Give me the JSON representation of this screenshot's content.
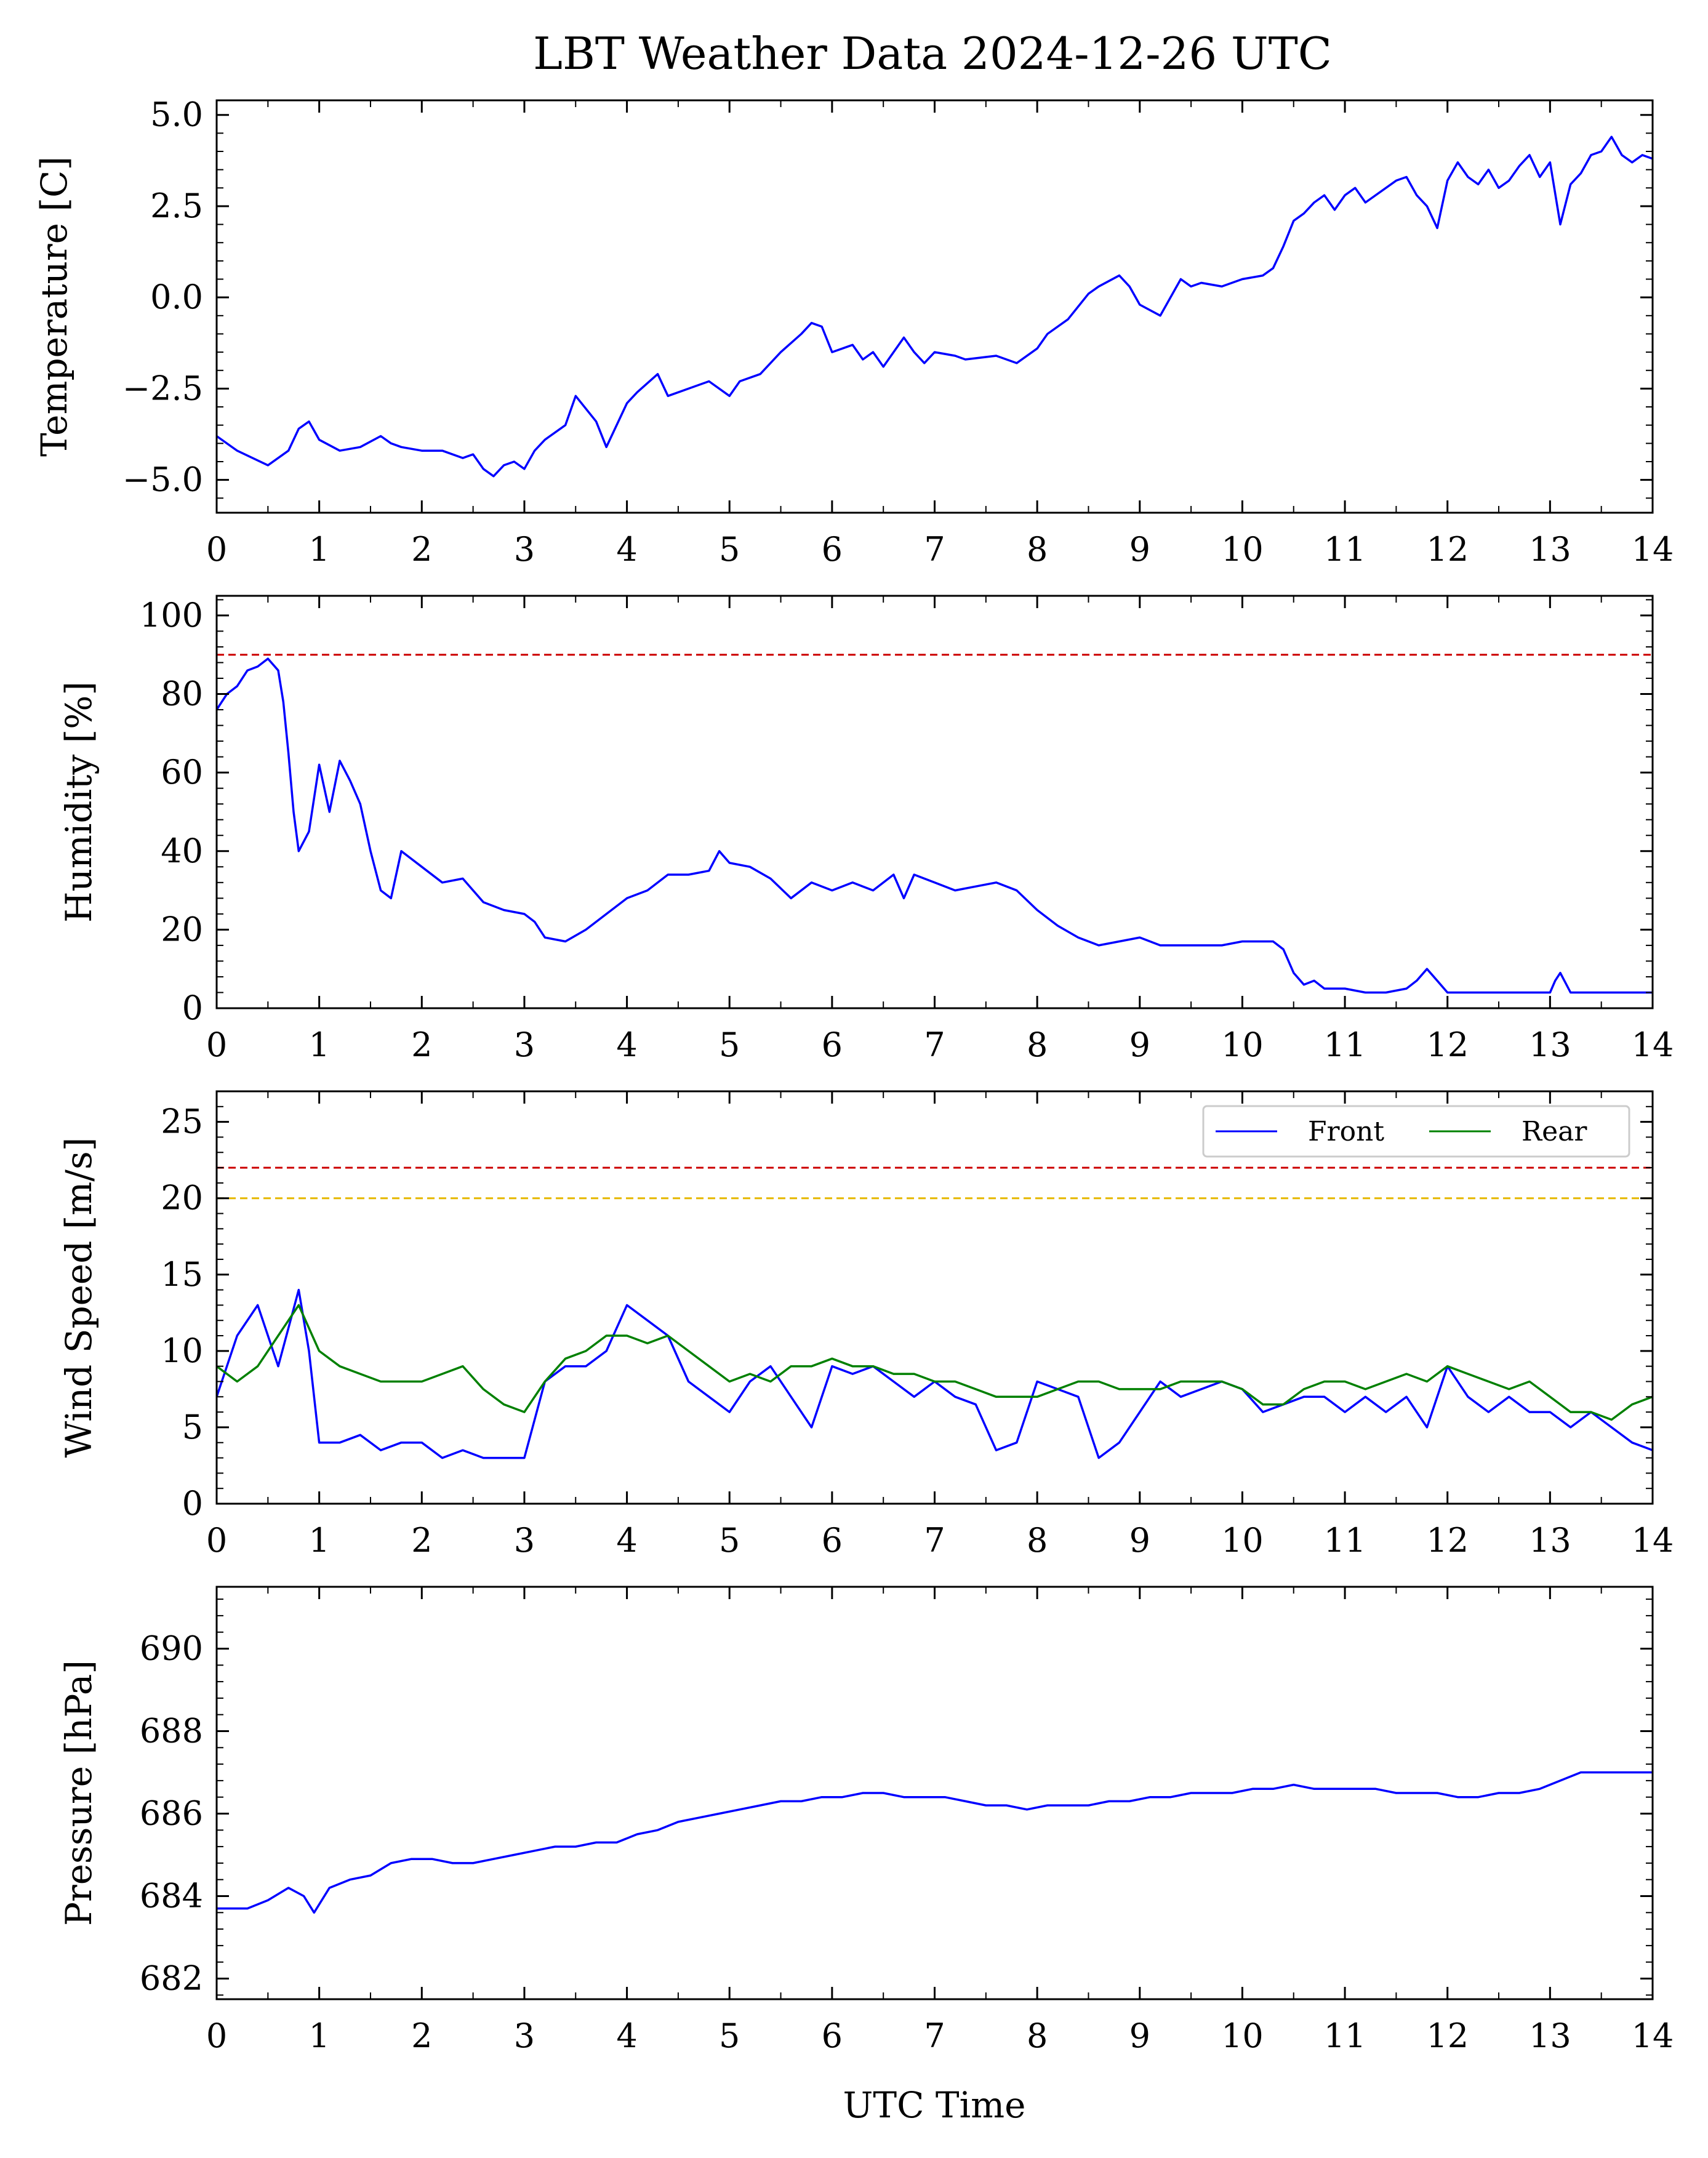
{
  "chart_data": {
    "title": "LBT Weather Data 2024-12-26 UTC",
    "xlabel": "UTC Time",
    "xlim": [
      0,
      14
    ],
    "xticks": [
      0,
      1,
      2,
      3,
      4,
      5,
      6,
      7,
      8,
      9,
      10,
      11,
      12,
      13,
      14
    ],
    "panels": [
      {
        "id": "temperature",
        "type": "line",
        "ylabel": "Temperature [C]",
        "ylim": [
          -5.9,
          5.4
        ],
        "yticks": [
          -5.0,
          -2.5,
          0.0,
          2.5,
          5.0
        ],
        "ytick_labels": [
          "−5.0",
          "−2.5",
          "0.0",
          "2.5",
          "5.0"
        ],
        "series": [
          {
            "color": "#0000ff",
            "x": [
              0,
              0.2,
              0.5,
              0.7,
              0.8,
              0.9,
              1.0,
              1.2,
              1.4,
              1.6,
              1.7,
              1.8,
              2.0,
              2.2,
              2.4,
              2.5,
              2.6,
              2.7,
              2.8,
              2.9,
              3.0,
              3.1,
              3.2,
              3.4,
              3.5,
              3.7,
              3.8,
              4.0,
              4.1,
              4.3,
              4.4,
              4.6,
              4.8,
              5.0,
              5.1,
              5.3,
              5.5,
              5.7,
              5.8,
              5.9,
              6.0,
              6.2,
              6.3,
              6.4,
              6.5,
              6.7,
              6.8,
              6.9,
              7.0,
              7.2,
              7.3,
              7.6,
              7.8,
              8.0,
              8.1,
              8.3,
              8.5,
              8.6,
              8.8,
              8.9,
              9.0,
              9.2,
              9.4,
              9.5,
              9.6,
              9.8,
              10.0,
              10.2,
              10.3,
              10.4,
              10.5,
              10.6,
              10.7,
              10.8,
              10.9,
              11.0,
              11.1,
              11.2,
              11.4,
              11.5,
              11.6,
              11.7,
              11.8,
              11.9,
              12.0,
              12.1,
              12.2,
              12.3,
              12.4,
              12.5,
              12.6,
              12.7,
              12.8,
              12.9,
              13.0,
              13.1,
              13.2,
              13.3,
              13.4,
              13.5,
              13.6,
              13.7,
              13.8,
              13.9,
              14.0
            ],
            "y": [
              -3.8,
              -4.2,
              -4.6,
              -4.2,
              -3.6,
              -3.4,
              -3.9,
              -4.2,
              -4.1,
              -3.8,
              -4.0,
              -4.1,
              -4.2,
              -4.2,
              -4.4,
              -4.3,
              -4.7,
              -4.9,
              -4.6,
              -4.5,
              -4.7,
              -4.2,
              -3.9,
              -3.5,
              -2.7,
              -3.4,
              -4.1,
              -2.9,
              -2.6,
              -2.1,
              -2.7,
              -2.5,
              -2.3,
              -2.7,
              -2.3,
              -2.1,
              -1.5,
              -1.0,
              -0.7,
              -0.8,
              -1.5,
              -1.3,
              -1.7,
              -1.5,
              -1.9,
              -1.1,
              -1.5,
              -1.8,
              -1.5,
              -1.6,
              -1.7,
              -1.6,
              -1.8,
              -1.4,
              -1.0,
              -0.6,
              0.1,
              0.3,
              0.6,
              0.3,
              -0.2,
              -0.5,
              0.5,
              0.3,
              0.4,
              0.3,
              0.5,
              0.6,
              0.8,
              1.4,
              2.1,
              2.3,
              2.6,
              2.8,
              2.4,
              2.8,
              3.0,
              2.6,
              3.0,
              3.2,
              3.3,
              2.8,
              2.5,
              1.9,
              3.2,
              3.7,
              3.3,
              3.1,
              3.5,
              3.0,
              3.2,
              3.6,
              3.9,
              3.3,
              3.7,
              2.0,
              3.1,
              3.4,
              3.9,
              4.0,
              4.4,
              3.9,
              3.7,
              3.9,
              3.8
            ]
          }
        ],
        "hlines": []
      },
      {
        "id": "humidity",
        "type": "line",
        "ylabel": "Humidity [%]",
        "ylim": [
          0,
          105
        ],
        "yticks": [
          0,
          20,
          40,
          60,
          80,
          100
        ],
        "ytick_labels": [
          "0",
          "20",
          "40",
          "60",
          "80",
          "100"
        ],
        "series": [
          {
            "color": "#0000ff",
            "x": [
              0,
              0.1,
              0.2,
              0.3,
              0.4,
              0.5,
              0.6,
              0.65,
              0.7,
              0.75,
              0.8,
              0.9,
              1.0,
              1.1,
              1.2,
              1.3,
              1.4,
              1.5,
              1.6,
              1.7,
              1.8,
              1.9,
              2.0,
              2.2,
              2.4,
              2.6,
              2.8,
              3.0,
              3.1,
              3.2,
              3.4,
              3.6,
              3.8,
              4.0,
              4.2,
              4.4,
              4.6,
              4.8,
              4.9,
              5.0,
              5.2,
              5.4,
              5.6,
              5.8,
              6.0,
              6.2,
              6.4,
              6.6,
              6.7,
              6.8,
              7.0,
              7.2,
              7.4,
              7.6,
              7.8,
              8.0,
              8.2,
              8.4,
              8.6,
              8.8,
              9.0,
              9.2,
              9.4,
              9.6,
              9.8,
              10.0,
              10.2,
              10.3,
              10.4,
              10.5,
              10.6,
              10.7,
              10.8,
              11.0,
              11.2,
              11.4,
              11.6,
              11.7,
              11.8,
              11.9,
              12.0,
              12.2,
              12.4,
              12.6,
              12.8,
              13.0,
              13.05,
              13.1,
              13.2,
              13.4,
              13.6,
              13.8,
              14.0
            ],
            "y": [
              76,
              80,
              82,
              86,
              87,
              89,
              86,
              78,
              65,
              50,
              40,
              45,
              62,
              50,
              63,
              58,
              52,
              40,
              30,
              28,
              40,
              38,
              36,
              32,
              33,
              27,
              25,
              24,
              22,
              18,
              17,
              20,
              24,
              28,
              30,
              34,
              34,
              35,
              40,
              37,
              36,
              33,
              28,
              32,
              30,
              32,
              30,
              34,
              28,
              34,
              32,
              30,
              31,
              32,
              30,
              25,
              21,
              18,
              16,
              17,
              18,
              16,
              16,
              16,
              16,
              17,
              17,
              17,
              15,
              9,
              6,
              7,
              5,
              5,
              4,
              4,
              5,
              7,
              10,
              7,
              4,
              4,
              4,
              4,
              4,
              4,
              7,
              9,
              4,
              4,
              4,
              4,
              4
            ]
          }
        ],
        "hlines": [
          {
            "y": 90,
            "color": "#cc0000"
          }
        ]
      },
      {
        "id": "wind",
        "type": "line",
        "ylabel": "Wind Speed [m/s]",
        "ylim": [
          0,
          27
        ],
        "yticks": [
          0,
          5,
          10,
          15,
          20,
          25
        ],
        "ytick_labels": [
          "0",
          "5",
          "10",
          "15",
          "20",
          "25"
        ],
        "legend": {
          "location": "upper right",
          "entries": [
            "Front",
            "Rear"
          ]
        },
        "series": [
          {
            "name": "Front",
            "color": "#0000ff",
            "x": [
              0,
              0.2,
              0.4,
              0.6,
              0.8,
              0.9,
              1.0,
              1.2,
              1.4,
              1.6,
              1.8,
              2.0,
              2.2,
              2.4,
              2.6,
              2.8,
              3.0,
              3.2,
              3.4,
              3.6,
              3.8,
              4.0,
              4.2,
              4.4,
              4.6,
              4.8,
              5.0,
              5.2,
              5.4,
              5.6,
              5.8,
              6.0,
              6.2,
              6.4,
              6.6,
              6.8,
              7.0,
              7.2,
              7.4,
              7.6,
              7.8,
              8.0,
              8.2,
              8.4,
              8.6,
              8.8,
              9.0,
              9.2,
              9.4,
              9.6,
              9.8,
              10.0,
              10.2,
              10.4,
              10.6,
              10.8,
              11.0,
              11.2,
              11.4,
              11.6,
              11.8,
              12.0,
              12.2,
              12.4,
              12.6,
              12.8,
              13.0,
              13.2,
              13.4,
              13.6,
              13.8,
              14.0
            ],
            "y": [
              7,
              11,
              13,
              9,
              14,
              10,
              4,
              4,
              4.5,
              3.5,
              4,
              4,
              3,
              3.5,
              3,
              3,
              3,
              8,
              9,
              9,
              10,
              13,
              12,
              11,
              8,
              7,
              6,
              8,
              9,
              7,
              5,
              9,
              8.5,
              9,
              8,
              7,
              8,
              7,
              6.5,
              3.5,
              4,
              8,
              7.5,
              7,
              3,
              4,
              6,
              8,
              7,
              7.5,
              8,
              7.5,
              6,
              6.5,
              7,
              7,
              6,
              7,
              6,
              7,
              5,
              9,
              7,
              6,
              7,
              6,
              6,
              5,
              6,
              5,
              4,
              3.5
            ]
          },
          {
            "name": "Rear",
            "color": "#008000",
            "x": [
              0,
              0.2,
              0.4,
              0.6,
              0.8,
              1.0,
              1.2,
              1.4,
              1.6,
              1.8,
              2.0,
              2.2,
              2.4,
              2.6,
              2.8,
              3.0,
              3.2,
              3.4,
              3.6,
              3.8,
              4.0,
              4.2,
              4.4,
              4.6,
              4.8,
              5.0,
              5.2,
              5.4,
              5.6,
              5.8,
              6.0,
              6.2,
              6.4,
              6.6,
              6.8,
              7.0,
              7.2,
              7.4,
              7.6,
              7.8,
              8.0,
              8.2,
              8.4,
              8.6,
              8.8,
              9.0,
              9.2,
              9.4,
              9.6,
              9.8,
              10.0,
              10.2,
              10.4,
              10.6,
              10.8,
              11.0,
              11.2,
              11.4,
              11.6,
              11.8,
              12.0,
              12.2,
              12.4,
              12.6,
              12.8,
              13.0,
              13.2,
              13.4,
              13.6,
              13.8,
              14.0
            ],
            "y": [
              9,
              8,
              9,
              11,
              13,
              10,
              9,
              8.5,
              8,
              8,
              8,
              8.5,
              9,
              7.5,
              6.5,
              6,
              8,
              9.5,
              10,
              11,
              11,
              10.5,
              11,
              10,
              9,
              8,
              8.5,
              8,
              9,
              9,
              9.5,
              9,
              9,
              8.5,
              8.5,
              8,
              8,
              7.5,
              7,
              7,
              7,
              7.5,
              8,
              8,
              7.5,
              7.5,
              7.5,
              8,
              8,
              8,
              7.5,
              6.5,
              6.5,
              7.5,
              8,
              8,
              7.5,
              8,
              8.5,
              8,
              9,
              8.5,
              8,
              7.5,
              8,
              7,
              6,
              6,
              5.5,
              6.5,
              7
            ]
          }
        ],
        "hlines": [
          {
            "y": 22,
            "color": "#cc0000"
          },
          {
            "y": 20,
            "color": "#e6b800"
          }
        ]
      },
      {
        "id": "pressure",
        "type": "line",
        "ylabel": "Pressure [hPa]",
        "ylim": [
          681.5,
          691.5
        ],
        "yticks": [
          682,
          684,
          686,
          688,
          690
        ],
        "ytick_labels": [
          "682",
          "684",
          "686",
          "688",
          "690"
        ],
        "series": [
          {
            "color": "#0000ff",
            "x": [
              0,
              0.3,
              0.5,
              0.7,
              0.85,
              0.95,
              1.1,
              1.3,
              1.5,
              1.7,
              1.9,
              2.1,
              2.3,
              2.5,
              2.7,
              2.9,
              3.1,
              3.3,
              3.5,
              3.7,
              3.9,
              4.1,
              4.3,
              4.5,
              4.7,
              4.9,
              5.1,
              5.3,
              5.5,
              5.7,
              5.9,
              6.1,
              6.3,
              6.5,
              6.7,
              6.9,
              7.1,
              7.3,
              7.5,
              7.7,
              7.9,
              8.1,
              8.3,
              8.5,
              8.7,
              8.9,
              9.1,
              9.3,
              9.5,
              9.7,
              9.9,
              10.1,
              10.3,
              10.5,
              10.7,
              10.9,
              11.1,
              11.3,
              11.5,
              11.7,
              11.9,
              12.1,
              12.3,
              12.5,
              12.7,
              12.9,
              13.1,
              13.3,
              13.5,
              13.7,
              13.9,
              14.0
            ],
            "y": [
              683.7,
              683.7,
              683.9,
              684.2,
              684.0,
              683.6,
              684.2,
              684.4,
              684.5,
              684.8,
              684.9,
              684.9,
              684.8,
              684.8,
              684.9,
              685.0,
              685.1,
              685.2,
              685.2,
              685.3,
              685.3,
              685.5,
              685.6,
              685.8,
              685.9,
              686.0,
              686.1,
              686.2,
              686.3,
              686.3,
              686.4,
              686.4,
              686.5,
              686.5,
              686.4,
              686.4,
              686.4,
              686.3,
              686.2,
              686.2,
              686.1,
              686.2,
              686.2,
              686.2,
              686.3,
              686.3,
              686.4,
              686.4,
              686.5,
              686.5,
              686.5,
              686.6,
              686.6,
              686.7,
              686.6,
              686.6,
              686.6,
              686.6,
              686.5,
              686.5,
              686.5,
              686.4,
              686.4,
              686.5,
              686.5,
              686.6,
              686.8,
              687.0,
              687.0,
              687.0,
              687.0,
              687.0
            ]
          }
        ],
        "hlines": []
      }
    ]
  }
}
